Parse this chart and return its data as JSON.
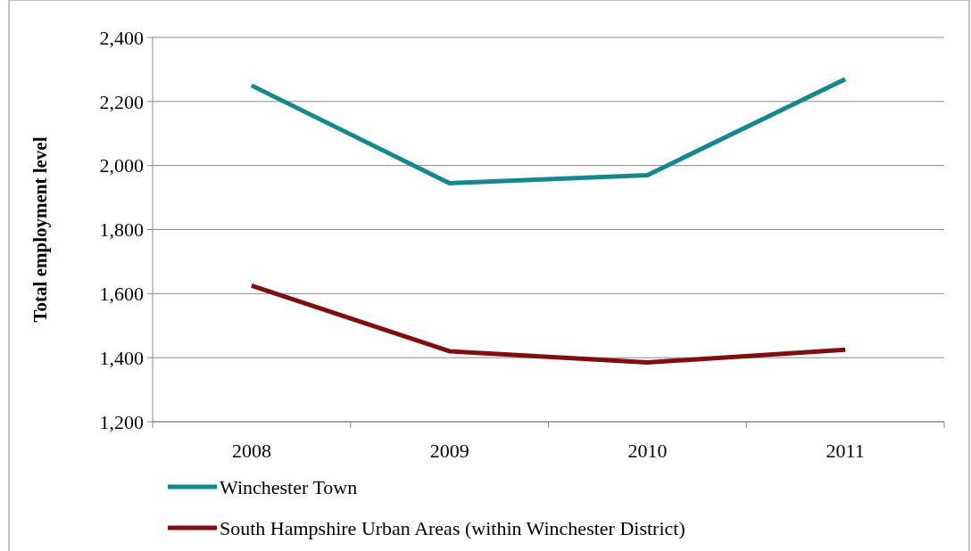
{
  "chart_data": {
    "type": "line",
    "ylabel": "Total employment level",
    "categories": [
      "2008",
      "2009",
      "2010",
      "2011"
    ],
    "series": [
      {
        "name": "Winchester Town",
        "color": "#17878f",
        "values": [
          2250,
          1945,
          1970,
          2270
        ]
      },
      {
        "name": "South Hampshire Urban Areas (within Winchester District)",
        "color": "#7f0f0f",
        "values": [
          1625,
          1420,
          1385,
          1425
        ]
      }
    ],
    "ylim": [
      1200,
      2400
    ],
    "yticks": [
      {
        "value": 1200,
        "label": "1,200"
      },
      {
        "value": 1400,
        "label": "1,400"
      },
      {
        "value": 1600,
        "label": "1,600"
      },
      {
        "value": 1800,
        "label": "1,800"
      },
      {
        "value": 2000,
        "label": "2,000"
      },
      {
        "value": 2200,
        "label": "2,200"
      },
      {
        "value": 2400,
        "label": "2,400"
      }
    ],
    "grid": "y",
    "legend": "bottom",
    "marker": "none",
    "line_style": "solid"
  }
}
